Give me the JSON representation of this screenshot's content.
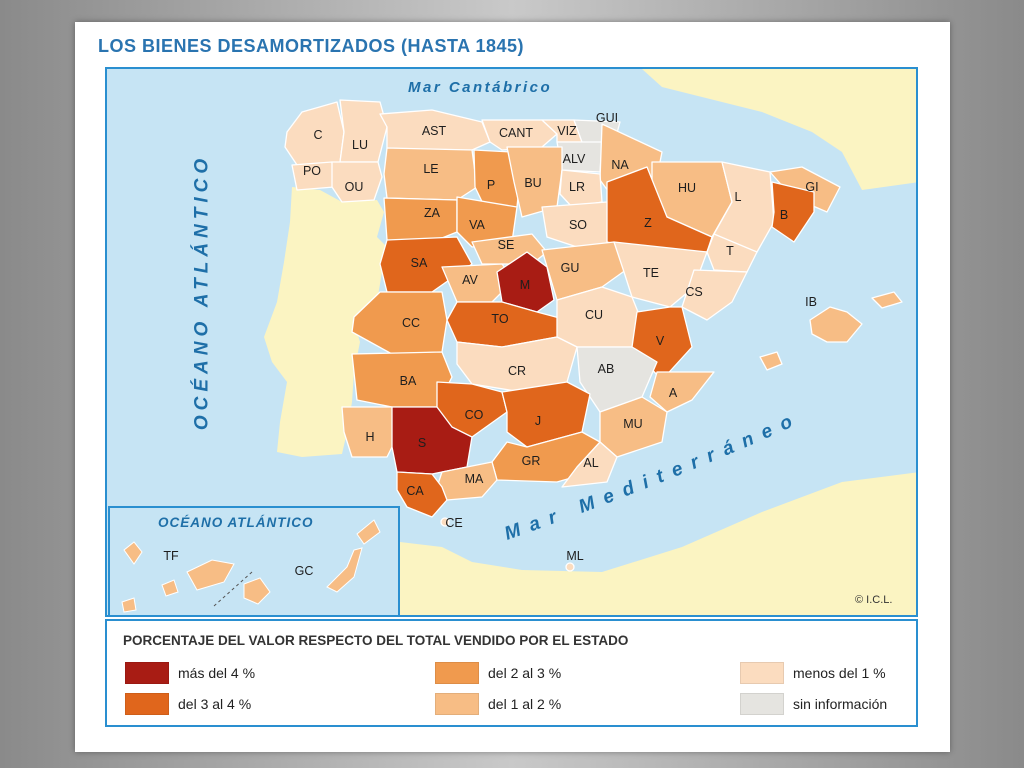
{
  "title": "LOS BIENES DESAMORTIZADOS (HASTA 1845)",
  "seas": {
    "cantabrico": "Mar Cantábrico",
    "atlantico": "OCÉANO ATLÁNTICO",
    "mediterraneo": "Mar Mediterráneo",
    "canarias": "OCÉANO ATLÁNTICO"
  },
  "copyright": "© I.C.L.",
  "legend": {
    "title": "PORCENTAJE DEL VALOR RESPECTO DEL TOTAL VENDIDO POR EL ESTADO",
    "items": [
      {
        "key": "mas4",
        "label": "más del 4 %",
        "color": "#a81c14"
      },
      {
        "key": "3a4",
        "label": "del 3 al 4 %",
        "color": "#e0661c"
      },
      {
        "key": "2a3",
        "label": "del 2 al 3 %",
        "color": "#f09a4e"
      },
      {
        "key": "1a2",
        "label": "del 1 al 2 %",
        "color": "#f7bd85"
      },
      {
        "key": "menos1",
        "label": "menos del 1 %",
        "color": "#fbdcbf"
      },
      {
        "key": "sin",
        "label": "sin información",
        "color": "#e5e4e0"
      }
    ]
  },
  "colors": {
    "sea": "#c6e4f4",
    "land_other": "#fbf4c2",
    "border": "#2a8fd0"
  },
  "provinces": [
    {
      "code": "C",
      "cat": "menos1"
    },
    {
      "code": "LU",
      "cat": "menos1"
    },
    {
      "code": "AST",
      "cat": "menos1"
    },
    {
      "code": "CANT",
      "cat": "menos1"
    },
    {
      "code": "VIZ",
      "cat": "menos1"
    },
    {
      "code": "GUI",
      "cat": "sin"
    },
    {
      "code": "ALV",
      "cat": "sin"
    },
    {
      "code": "PO",
      "cat": "menos1"
    },
    {
      "code": "OU",
      "cat": "menos1"
    },
    {
      "code": "LE",
      "cat": "1a2"
    },
    {
      "code": "P",
      "cat": "2a3"
    },
    {
      "code": "BU",
      "cat": "1a2"
    },
    {
      "code": "LR",
      "cat": "menos1"
    },
    {
      "code": "NA",
      "cat": "1a2"
    },
    {
      "code": "HU",
      "cat": "1a2"
    },
    {
      "code": "L",
      "cat": "menos1"
    },
    {
      "code": "GI",
      "cat": "1a2"
    },
    {
      "code": "B",
      "cat": "3a4"
    },
    {
      "code": "ZA",
      "cat": "2a3"
    },
    {
      "code": "VA",
      "cat": "2a3"
    },
    {
      "code": "SO",
      "cat": "menos1"
    },
    {
      "code": "Z",
      "cat": "3a4"
    },
    {
      "code": "SE",
      "cat": "1a2"
    },
    {
      "code": "T",
      "cat": "menos1"
    },
    {
      "code": "SA",
      "cat": "3a4"
    },
    {
      "code": "AV",
      "cat": "1a2"
    },
    {
      "code": "M",
      "cat": "mas4"
    },
    {
      "code": "GU",
      "cat": "1a2"
    },
    {
      "code": "TE",
      "cat": "menos1"
    },
    {
      "code": "CS",
      "cat": "menos1"
    },
    {
      "code": "CC",
      "cat": "2a3"
    },
    {
      "code": "TO",
      "cat": "3a4"
    },
    {
      "code": "CU",
      "cat": "menos1"
    },
    {
      "code": "IB",
      "cat": "1a2"
    },
    {
      "code": "V",
      "cat": "3a4"
    },
    {
      "code": "BA",
      "cat": "2a3"
    },
    {
      "code": "CR",
      "cat": "menos1"
    },
    {
      "code": "AB",
      "cat": "sin"
    },
    {
      "code": "A",
      "cat": "1a2"
    },
    {
      "code": "CO",
      "cat": "3a4"
    },
    {
      "code": "J",
      "cat": "3a4"
    },
    {
      "code": "MU",
      "cat": "1a2"
    },
    {
      "code": "H",
      "cat": "1a2"
    },
    {
      "code": "S",
      "cat": "mas4"
    },
    {
      "code": "GR",
      "cat": "2a3"
    },
    {
      "code": "AL",
      "cat": "menos1"
    },
    {
      "code": "MA",
      "cat": "1a2"
    },
    {
      "code": "CA",
      "cat": "3a4"
    },
    {
      "code": "CE",
      "cat": "menos1"
    },
    {
      "code": "ML",
      "cat": "menos1"
    },
    {
      "code": "TF",
      "cat": "1a2"
    },
    {
      "code": "GC",
      "cat": "1a2"
    }
  ]
}
